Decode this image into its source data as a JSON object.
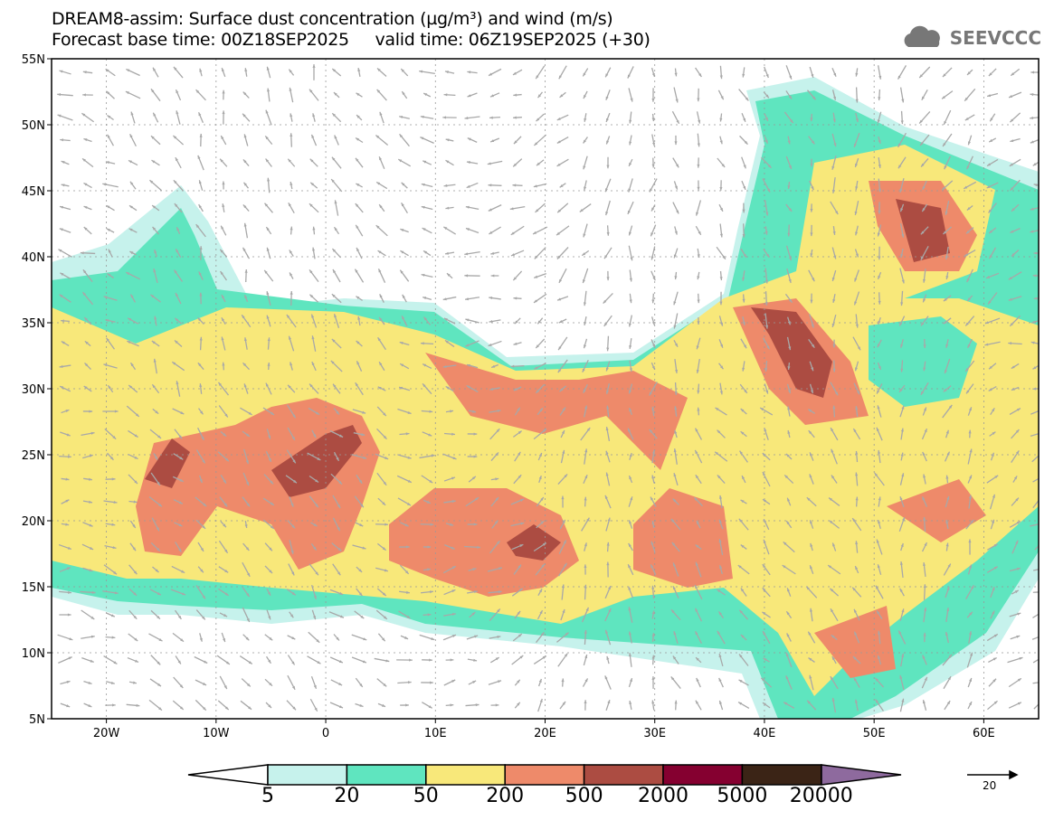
{
  "title": {
    "line1": "DREAM8-assim: Surface dust concentration (µg/m³) and wind (m/s)",
    "line2": "Forecast base time: 00Z18SEP2025     valid time: 06Z19SEP2025 (+30)"
  },
  "logo": {
    "text": "SEEVCCC",
    "icon": "cloud-icon"
  },
  "map": {
    "lon_range": [
      -25,
      65
    ],
    "lat_range": [
      5,
      55
    ],
    "lat_labels": [
      "55N",
      "50N",
      "45N",
      "40N",
      "35N",
      "30N",
      "25N",
      "20N",
      "15N",
      "10N",
      "5N"
    ],
    "lon_labels": [
      "20W",
      "10W",
      "0",
      "10E",
      "20E",
      "30E",
      "40E",
      "50E",
      "60E"
    ]
  },
  "colorbar": {
    "labels": [
      "5",
      "20",
      "50",
      "200",
      "500",
      "2000",
      "5000",
      "20000"
    ],
    "colors": [
      "#c6f2ec",
      "#5fe5bf",
      "#f8e87a",
      "#ee8a6a",
      "#ac4c42",
      "#850030",
      "#3b2416",
      "#8e6a9e"
    ]
  },
  "vector_key": {
    "label": "20"
  }
}
